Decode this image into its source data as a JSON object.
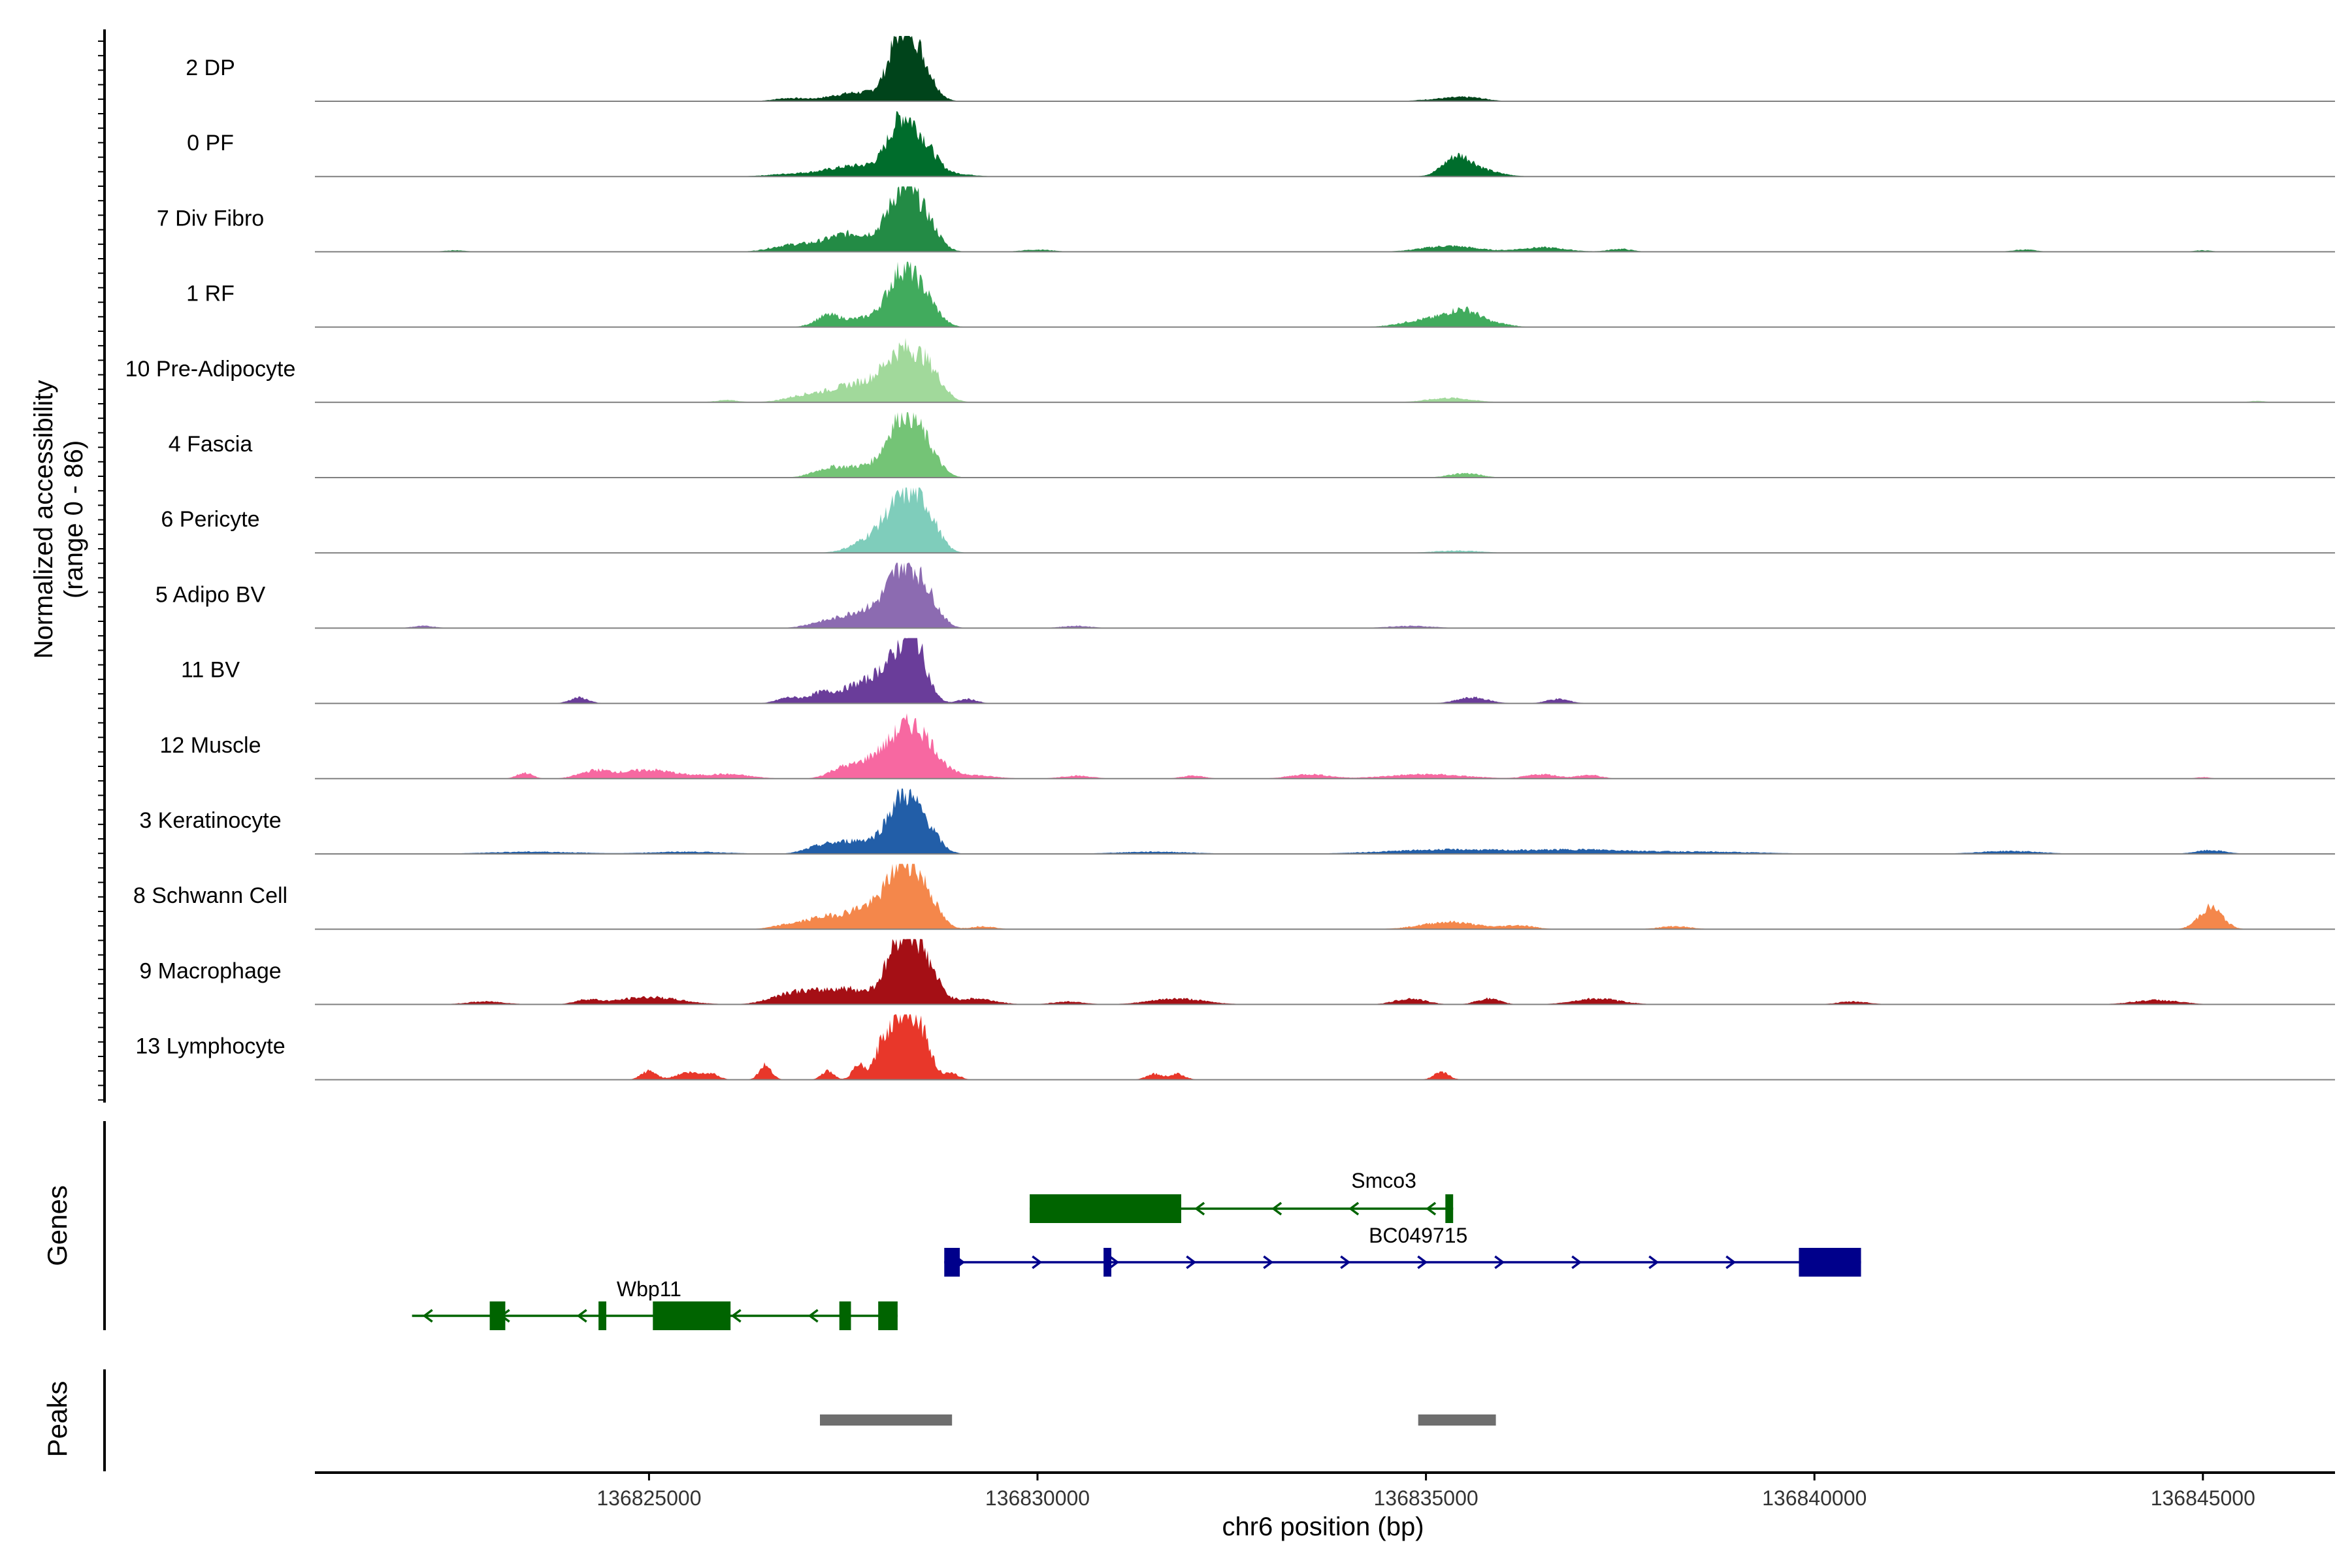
{
  "chart_data": {
    "type": "area",
    "title": "",
    "ylabel": "Normalized accessibility",
    "ylabel_range": "(range 0 - 86)",
    "xlabel": "chr6 position (bp)",
    "xlim": [
      136820700,
      136846700
    ],
    "ylim": [
      0,
      86
    ],
    "x_ticks": [
      136825000,
      136830000,
      136835000,
      136840000,
      136845000
    ],
    "x_tick_labels": [
      "136825000",
      "136830000",
      "136835000",
      "136840000",
      "136845000"
    ],
    "side_titles": {
      "genes": "Genes",
      "peaks": "Peaks"
    },
    "tracks": [
      {
        "name": "2 DP",
        "color": "#00441b",
        "peaks": [
          [
            136828250,
            86,
            160
          ],
          [
            136828500,
            45,
            160
          ],
          [
            136827700,
            12,
            350
          ],
          [
            136826800,
            4,
            200
          ],
          [
            136835300,
            4,
            300
          ],
          [
            136835600,
            3,
            200
          ]
        ]
      },
      {
        "name": "0 PF",
        "color": "#006d2c",
        "peaks": [
          [
            136828250,
            70,
            170
          ],
          [
            136828550,
            35,
            170
          ],
          [
            136827700,
            15,
            400
          ],
          [
            136835400,
            25,
            180
          ],
          [
            136835700,
            8,
            250
          ],
          [
            136826800,
            3,
            300
          ],
          [
            136829000,
            3,
            200
          ]
        ]
      },
      {
        "name": "7 Div Fibro",
        "color": "#238b45",
        "peaks": [
          [
            136828250,
            75,
            180
          ],
          [
            136828550,
            40,
            170
          ],
          [
            136827600,
            25,
            350
          ],
          [
            136826800,
            8,
            250
          ],
          [
            136835300,
            8,
            350
          ],
          [
            136836500,
            6,
            300
          ],
          [
            136837500,
            4,
            150
          ],
          [
            136830000,
            3,
            200
          ],
          [
            136842700,
            3,
            150
          ],
          [
            136822500,
            2,
            150
          ],
          [
            136845000,
            2,
            120
          ]
        ]
      },
      {
        "name": "1 RF",
        "color": "#41ab5d",
        "peaks": [
          [
            136828250,
            70,
            180
          ],
          [
            136828550,
            35,
            170
          ],
          [
            136827300,
            15,
            160
          ],
          [
            136827800,
            12,
            250
          ],
          [
            136835500,
            22,
            220
          ],
          [
            136835000,
            10,
            300
          ],
          [
            136836000,
            3,
            150
          ]
        ]
      },
      {
        "name": "10 Pre-Adipocyte",
        "color": "#a1d99b",
        "peaks": [
          [
            136828250,
            60,
            220
          ],
          [
            136828600,
            38,
            180
          ],
          [
            136827700,
            25,
            350
          ],
          [
            136827000,
            8,
            250
          ],
          [
            136835300,
            6,
            280
          ],
          [
            136826000,
            3,
            150
          ],
          [
            136845700,
            2,
            100
          ]
        ]
      },
      {
        "name": "4 Fascia",
        "color": "#74c476",
        "peaks": [
          [
            136828250,
            75,
            180
          ],
          [
            136828550,
            40,
            170
          ],
          [
            136827800,
            15,
            300
          ],
          [
            136827300,
            10,
            200
          ],
          [
            136835500,
            6,
            200
          ]
        ]
      },
      {
        "name": "6 Pericyte",
        "color": "#7fcdbb",
        "peaks": [
          [
            136828250,
            60,
            200
          ],
          [
            136828550,
            50,
            170
          ],
          [
            136827900,
            20,
            250
          ],
          [
            136835400,
            3,
            300
          ]
        ]
      },
      {
        "name": "5 Adipo BV",
        "color": "#8c6bb1",
        "peaks": [
          [
            136828250,
            70,
            180
          ],
          [
            136828550,
            45,
            170
          ],
          [
            136827800,
            25,
            300
          ],
          [
            136827200,
            6,
            200
          ],
          [
            136822100,
            3,
            150
          ],
          [
            136830500,
            3,
            200
          ],
          [
            136834800,
            3,
            300
          ]
        ]
      },
      {
        "name": "11 BV",
        "color": "#6a3d9a",
        "peaks": [
          [
            136828400,
            86,
            160
          ],
          [
            136828100,
            40,
            180
          ],
          [
            136827700,
            25,
            250
          ],
          [
            136827200,
            12,
            150
          ],
          [
            136826800,
            8,
            150
          ],
          [
            136824100,
            8,
            120
          ],
          [
            136829100,
            6,
            120
          ],
          [
            136835600,
            8,
            200
          ],
          [
            136836700,
            6,
            150
          ]
        ]
      },
      {
        "name": "12 Muscle",
        "color": "#f768a1",
        "peaks": [
          [
            136828300,
            65,
            200
          ],
          [
            136828600,
            30,
            170
          ],
          [
            136827900,
            25,
            180
          ],
          [
            136827500,
            15,
            180
          ],
          [
            136825000,
            12,
            350
          ],
          [
            136824300,
            10,
            200
          ],
          [
            136823400,
            8,
            100
          ],
          [
            136826000,
            6,
            300
          ],
          [
            136829000,
            6,
            350
          ],
          [
            136833500,
            6,
            250
          ],
          [
            136835000,
            6,
            500
          ],
          [
            136836500,
            6,
            200
          ],
          [
            136837100,
            5,
            150
          ],
          [
            136830500,
            4,
            200
          ],
          [
            136832000,
            4,
            150
          ],
          [
            136845000,
            2,
            100
          ]
        ]
      },
      {
        "name": "3 Keratinocyte",
        "color": "#225ea8",
        "peaks": [
          [
            136828250,
            70,
            180
          ],
          [
            136828550,
            35,
            170
          ],
          [
            136827700,
            18,
            300
          ],
          [
            136827200,
            8,
            200
          ],
          [
            136835300,
            6,
            800
          ],
          [
            136837000,
            5,
            600
          ],
          [
            136838500,
            3,
            800
          ],
          [
            136842500,
            4,
            400
          ],
          [
            136845100,
            5,
            200
          ],
          [
            136823500,
            3,
            600
          ],
          [
            136825500,
            3,
            500
          ],
          [
            136831500,
            3,
            500
          ]
        ]
      },
      {
        "name": "8 Schwann Cell",
        "color": "#f4874b",
        "peaks": [
          [
            136828250,
            75,
            180
          ],
          [
            136828550,
            45,
            170
          ],
          [
            136827800,
            30,
            300
          ],
          [
            136827200,
            12,
            200
          ],
          [
            136845100,
            30,
            150
          ],
          [
            136835300,
            10,
            350
          ],
          [
            136836200,
            5,
            200
          ],
          [
            136826800,
            6,
            200
          ],
          [
            136838200,
            4,
            200
          ],
          [
            136829300,
            4,
            150
          ]
        ]
      },
      {
        "name": "9 Macrophage",
        "color": "#a50f15",
        "peaks": [
          [
            136828250,
            86,
            180
          ],
          [
            136828550,
            50,
            170
          ],
          [
            136827500,
            22,
            400
          ],
          [
            136826800,
            12,
            250
          ],
          [
            136825000,
            10,
            400
          ],
          [
            136824200,
            6,
            150
          ],
          [
            136829200,
            8,
            250
          ],
          [
            136830400,
            4,
            200
          ],
          [
            136831800,
            8,
            350
          ],
          [
            136834800,
            8,
            200
          ],
          [
            136835800,
            8,
            150
          ],
          [
            136837200,
            8,
            300
          ],
          [
            136840500,
            4,
            200
          ],
          [
            136844400,
            6,
            300
          ],
          [
            136822900,
            4,
            250
          ]
        ]
      },
      {
        "name": "13 Lymphocyte",
        "color": "#e8372a",
        "peaks": [
          [
            136828250,
            86,
            140
          ],
          [
            136828500,
            60,
            130
          ],
          [
            136828000,
            40,
            100
          ],
          [
            136827700,
            20,
            80
          ],
          [
            136827300,
            12,
            80
          ],
          [
            136826500,
            20,
            80
          ],
          [
            136825000,
            12,
            100
          ],
          [
            136825500,
            10,
            150
          ],
          [
            136825800,
            8,
            100
          ],
          [
            136828900,
            8,
            100
          ],
          [
            136831500,
            8,
            100
          ],
          [
            136831800,
            8,
            100
          ],
          [
            136835200,
            10,
            100
          ]
        ]
      }
    ],
    "genes": [
      {
        "name": "Smco3",
        "strand": "-",
        "color": "#006400",
        "start": 136829900,
        "end": 136835350,
        "exons": [
          [
            136829900,
            136831850
          ],
          [
            136835250,
            136835350
          ]
        ]
      },
      {
        "name": "BC049715",
        "strand": "+",
        "color": "#00008b",
        "start": 136828800,
        "end": 136840600,
        "exons": [
          [
            136828800,
            136829000
          ],
          [
            136830850,
            136830950
          ],
          [
            136839800,
            136840600
          ]
        ]
      },
      {
        "name": "Wbp11",
        "strand": "-",
        "color": "#006400",
        "start": 136821950,
        "end": 136828200,
        "exons": [
          [
            136822950,
            136823150
          ],
          [
            136824350,
            136824450
          ],
          [
            136825050,
            136826050
          ],
          [
            136827450,
            136827600
          ],
          [
            136827950,
            136828200
          ]
        ]
      }
    ],
    "peak_regions": [
      [
        136827200,
        136828900
      ],
      [
        136834900,
        136835900
      ]
    ],
    "colors": {
      "baseline": "#808080",
      "peak_region": "#6e6e6e",
      "axis": "#000000"
    }
  }
}
